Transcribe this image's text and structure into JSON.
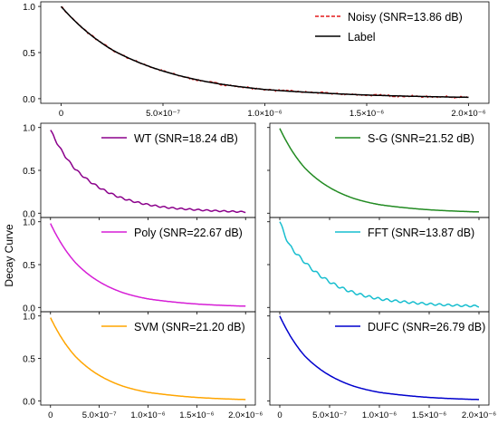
{
  "figure": {
    "ylabel": "Decay Curve"
  },
  "chart_data": [
    {
      "type": "line",
      "panel": "top",
      "x_ticks": [
        0,
        5e-07,
        1e-06,
        1.5e-06,
        2e-06
      ],
      "x_tick_labels": [
        "0",
        "5.0×10⁻⁷",
        "1.0×10⁻⁶",
        "1.5×10⁻⁶",
        "2.0×10⁻⁶"
      ],
      "y_ticks": [
        0,
        0.5,
        1
      ],
      "y_tick_labels": [
        "0.0",
        "0.5",
        "1.0"
      ],
      "xlim": [
        -1e-07,
        2.1e-06
      ],
      "ylim": [
        -0.05,
        1.05
      ],
      "legend": "top-right",
      "series": [
        {
          "name": "Noisy (SNR=13.86 dB)",
          "color": "#e41a1c",
          "style": "dashed",
          "noise": 0.012,
          "x": [
            0,
            2.5e-07,
            5e-07,
            7.5e-07,
            1e-06,
            1.25e-06,
            1.5e-06,
            1.75e-06,
            2e-06
          ],
          "y": [
            1.0,
            0.53,
            0.3,
            0.17,
            0.1,
            0.065,
            0.04,
            0.025,
            0.015
          ]
        },
        {
          "name": "Label",
          "color": "#000000",
          "style": "solid",
          "x": [
            0,
            2.5e-07,
            5e-07,
            7.5e-07,
            1e-06,
            1.25e-06,
            1.5e-06,
            1.75e-06,
            2e-06
          ],
          "y": [
            1.0,
            0.53,
            0.3,
            0.17,
            0.1,
            0.065,
            0.04,
            0.025,
            0.015
          ]
        }
      ]
    },
    {
      "type": "line",
      "panel": "row1-left",
      "x_ticks": [
        0,
        5e-07,
        1e-06,
        1.5e-06,
        2e-06
      ],
      "x_tick_labels": [],
      "y_ticks": [
        0,
        0.5,
        1
      ],
      "y_tick_labels": [
        "0.0",
        "0.5",
        "1.0"
      ],
      "xlim": [
        -1e-07,
        2.1e-06
      ],
      "ylim": [
        -0.05,
        1.05
      ],
      "legend": "top-right",
      "series": [
        {
          "name": "WT (SNR=18.24 dB)",
          "color": "#8b008b",
          "style": "solid",
          "ripple": 0.012,
          "x": [
            0,
            2.5e-07,
            5e-07,
            7.5e-07,
            1e-06,
            1.25e-06,
            1.5e-06,
            1.75e-06,
            2e-06
          ],
          "y": [
            0.97,
            0.52,
            0.3,
            0.17,
            0.1,
            0.06,
            0.04,
            0.025,
            0.015
          ]
        }
      ]
    },
    {
      "type": "line",
      "panel": "row1-right",
      "x_ticks": [
        0,
        5e-07,
        1e-06,
        1.5e-06,
        2e-06
      ],
      "x_tick_labels": [],
      "y_ticks": [
        0,
        0.5,
        1
      ],
      "y_tick_labels": [],
      "xlim": [
        -1e-07,
        2.1e-06
      ],
      "ylim": [
        -0.05,
        1.05
      ],
      "legend": "top-right",
      "series": [
        {
          "name": "S-G (SNR=21.52 dB)",
          "color": "#228b22",
          "style": "solid",
          "x": [
            0,
            2.5e-07,
            5e-07,
            7.5e-07,
            1e-06,
            1.25e-06,
            1.5e-06,
            1.75e-06,
            2e-06
          ],
          "y": [
            0.99,
            0.53,
            0.3,
            0.17,
            0.1,
            0.065,
            0.04,
            0.025,
            0.015
          ]
        }
      ]
    },
    {
      "type": "line",
      "panel": "row2-left",
      "x_ticks": [
        0,
        5e-07,
        1e-06,
        1.5e-06,
        2e-06
      ],
      "x_tick_labels": [],
      "y_ticks": [
        0,
        0.5,
        1
      ],
      "y_tick_labels": [
        "0.0",
        "0.5",
        "1.0"
      ],
      "xlim": [
        -1e-07,
        2.1e-06
      ],
      "ylim": [
        -0.05,
        1.05
      ],
      "legend": "top-right",
      "series": [
        {
          "name": "Poly (SNR=22.67 dB)",
          "color": "#d61fd6",
          "style": "solid",
          "x": [
            0,
            2.5e-07,
            5e-07,
            7.5e-07,
            1e-06,
            1.25e-06,
            1.5e-06,
            1.75e-06,
            2e-06
          ],
          "y": [
            0.98,
            0.53,
            0.3,
            0.17,
            0.1,
            0.065,
            0.04,
            0.025,
            0.015
          ]
        }
      ]
    },
    {
      "type": "line",
      "panel": "row2-right",
      "x_ticks": [
        0,
        5e-07,
        1e-06,
        1.5e-06,
        2e-06
      ],
      "x_tick_labels": [],
      "y_ticks": [
        0,
        0.5,
        1
      ],
      "y_tick_labels": [],
      "xlim": [
        -1e-07,
        2.1e-06
      ],
      "ylim": [
        -0.05,
        1.05
      ],
      "legend": "top-right",
      "series": [
        {
          "name": "FFT (SNR=13.87 dB)",
          "color": "#17becf",
          "style": "solid",
          "ripple": 0.018,
          "x": [
            0,
            1e-07,
            2.5e-07,
            5e-07,
            7.5e-07,
            1e-06,
            1.25e-06,
            1.5e-06,
            1.75e-06,
            2e-06
          ],
          "y": [
            1.0,
            0.72,
            0.53,
            0.3,
            0.17,
            0.1,
            0.065,
            0.04,
            0.025,
            0.015
          ]
        }
      ]
    },
    {
      "type": "line",
      "panel": "row3-left",
      "x_ticks": [
        0,
        5e-07,
        1e-06,
        1.5e-06,
        2e-06
      ],
      "x_tick_labels": [
        "0",
        "5.0×10⁻⁷",
        "1.0×10⁻⁶",
        "1.5×10⁻⁶",
        "2.0×10⁻⁶"
      ],
      "y_ticks": [
        0,
        0.5,
        1
      ],
      "y_tick_labels": [
        "0.0",
        "0.5",
        "1.0"
      ],
      "xlim": [
        -1e-07,
        2.1e-06
      ],
      "ylim": [
        -0.05,
        1.05
      ],
      "legend": "top-right",
      "series": [
        {
          "name": "SVM (SNR=21.20 dB)",
          "color": "#ffa500",
          "style": "solid",
          "x": [
            0,
            2.5e-07,
            5e-07,
            7.5e-07,
            1e-06,
            1.25e-06,
            1.5e-06,
            1.75e-06,
            2e-06
          ],
          "y": [
            0.98,
            0.53,
            0.3,
            0.17,
            0.1,
            0.065,
            0.04,
            0.025,
            0.015
          ]
        }
      ]
    },
    {
      "type": "line",
      "panel": "row3-right",
      "x_ticks": [
        0,
        5e-07,
        1e-06,
        1.5e-06,
        2e-06
      ],
      "x_tick_labels": [
        "0",
        "5.0×10⁻⁷",
        "1.0×10⁻⁶",
        "1.5×10⁻⁶",
        "2.0×10⁻⁶"
      ],
      "y_ticks": [
        0,
        0.5,
        1
      ],
      "y_tick_labels": [],
      "xlim": [
        -1e-07,
        2.1e-06
      ],
      "ylim": [
        -0.05,
        1.05
      ],
      "legend": "top-right",
      "series": [
        {
          "name": "DUFC (SNR=26.79 dB)",
          "color": "#0000cd",
          "style": "solid",
          "x": [
            0,
            2.5e-07,
            5e-07,
            7.5e-07,
            1e-06,
            1.25e-06,
            1.5e-06,
            1.75e-06,
            2e-06
          ],
          "y": [
            1.0,
            0.53,
            0.3,
            0.17,
            0.1,
            0.065,
            0.04,
            0.025,
            0.015
          ]
        }
      ]
    }
  ]
}
